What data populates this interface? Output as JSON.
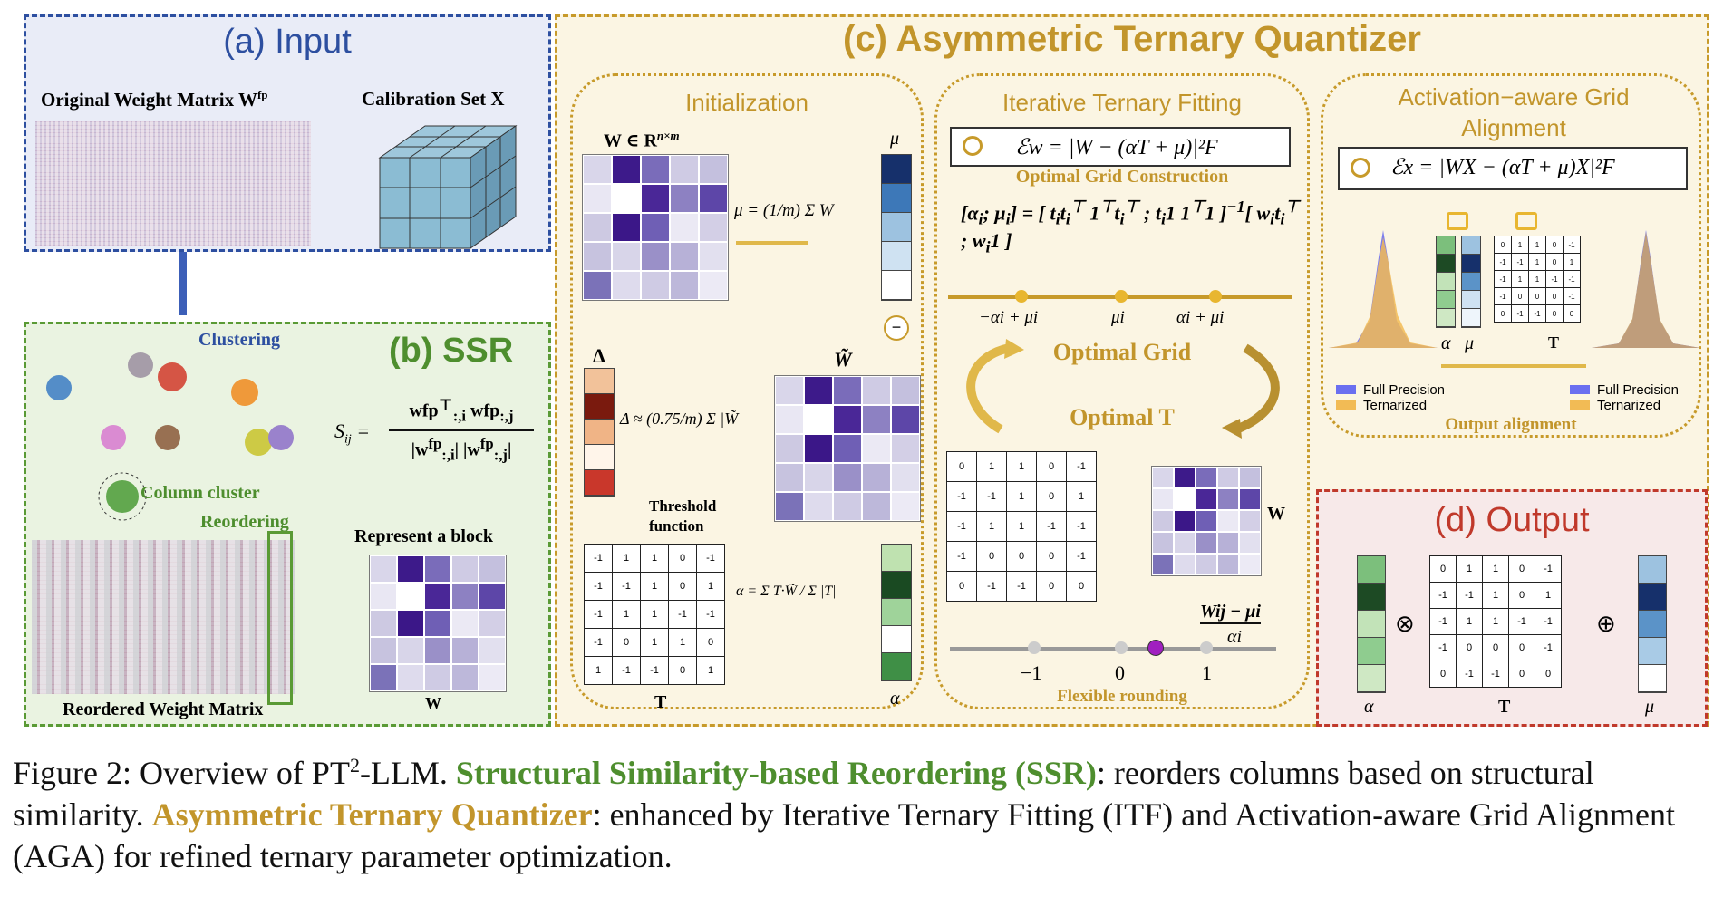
{
  "input": {
    "title": "(a) Input",
    "weight_label": "Original Weight Matrix W",
    "weight_sup": "fp",
    "calib_label": "Calibration Set X"
  },
  "ssr": {
    "title": "(b) SSR",
    "clustering": "Clustering",
    "column_cluster": "Column cluster",
    "reordering": "Reordering",
    "represent_block": "Represent a block",
    "reordered_label": "Reordered Weight Matrix",
    "w_label": "W",
    "sim_lhs": "S",
    "sim_sub": "ij",
    "sim_eq": "="
  },
  "atq": {
    "title": "(c) Asymmetric Ternary Quantizer",
    "init": {
      "title": "Initialization",
      "w_def": "W ∈ R",
      "w_def_sup": "n×m",
      "mu_label": "μ",
      "mu_eq": "μ = (1/m) Σ W",
      "w_tilde": "W̃",
      "delta_label": "Δ",
      "delta_eq": "Δ ≈ (0.75/m) Σ |W̃",
      "threshold": "Threshold function",
      "alpha_eq": "α = Σ T·W̃ / Σ |T|",
      "t_label": "T",
      "alpha_label": "α",
      "t_matrix": [
        [
          "-1",
          "1",
          "1",
          "0",
          "-1"
        ],
        [
          "-1",
          "-1",
          "1",
          "0",
          "1"
        ],
        [
          "-1",
          "1",
          "1",
          "-1",
          "-1"
        ],
        [
          "-1",
          "0",
          "1",
          "1",
          "0"
        ],
        [
          "1",
          "-1",
          "-1",
          "0",
          "1"
        ]
      ]
    },
    "itf": {
      "title": "Iterative Ternary Fitting",
      "loss": "ℰw = |W − (αT + μ)|²F",
      "opt_grid_construction": "Optimal Grid Construction",
      "grid_pts": [
        "−αi + μi",
        "μi",
        "αi + μi"
      ],
      "optimal_grid": "Optimal Grid",
      "optimal_t": "Optimal T",
      "w_label": "W",
      "t_matrix": [
        [
          "0",
          "1",
          "1",
          "0",
          "-1"
        ],
        [
          "-1",
          "-1",
          "1",
          "0",
          "1"
        ],
        [
          "-1",
          "1",
          "1",
          "-1",
          "-1"
        ],
        [
          "-1",
          "0",
          "0",
          "0",
          "-1"
        ],
        [
          "0",
          "-1",
          "-1",
          "0",
          "0"
        ]
      ],
      "axis": [
        "−1",
        "0",
        "1"
      ],
      "frac": "Wij − μi",
      "frac_den": "αi",
      "flexible": "Flexible rounding"
    },
    "aga": {
      "title": "Activation−aware Grid Alignment",
      "loss": "ℰx = |WX − (αT + μ)X|²F",
      "alpha": "α",
      "mu": "μ",
      "t": "T",
      "legend_fp": "Full Precision",
      "legend_tern": "Ternarized",
      "output_alignment": "Output alignment",
      "t_matrix": [
        [
          "0",
          "1",
          "1",
          "0",
          "-1"
        ],
        [
          "-1",
          "-1",
          "1",
          "0",
          "1"
        ],
        [
          "-1",
          "1",
          "1",
          "-1",
          "-1"
        ],
        [
          "-1",
          "0",
          "0",
          "0",
          "-1"
        ],
        [
          "0",
          "-1",
          "-1",
          "0",
          "0"
        ]
      ]
    }
  },
  "output": {
    "title": "(d) Output",
    "alpha": "α",
    "t": "T",
    "mu": "μ",
    "otimes": "⊗",
    "oplus": "⊕",
    "t_matrix": [
      [
        "0",
        "1",
        "1",
        "0",
        "-1"
      ],
      [
        "-1",
        "-1",
        "1",
        "0",
        "1"
      ],
      [
        "-1",
        "1",
        "1",
        "-1",
        "-1"
      ],
      [
        "-1",
        "0",
        "0",
        "0",
        "-1"
      ],
      [
        "0",
        "-1",
        "-1",
        "0",
        "0"
      ]
    ]
  },
  "caption": {
    "prefix": "Figure 2: Overview of PT",
    "sup": "2",
    "after_sup": "-LLM. ",
    "ssr": "Structural Similarity-based Reordering (SSR)",
    "mid1": ": reorders columns based on structural similarity. ",
    "atq": "Asymmetric Ternary Quantizer",
    "mid2": ": enhanced by Iterative Ternary Fitting (ITF) and Activation-aware Grid Alignment (AGA) for refined ternary parameter optimization."
  },
  "colors": {
    "blue_border": "#2d4fa0",
    "green_border": "#5a9a35",
    "gold_border": "#c79a2a",
    "red_border": "#c0392b",
    "purple": "#3d1a8a"
  }
}
